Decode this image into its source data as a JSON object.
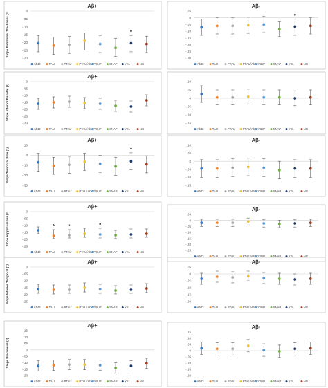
{
  "colors": {
    "Ab42": "#3b78c2",
    "TAU": "#e8822e",
    "PTAU": "#a5a5a5",
    "PTAU/Ab42": "#f2c12e",
    "VILIP": "#5b9bd5",
    "SNAP": "#70ad47",
    "YKL": "#1f3864",
    "NG": "#9e3a1f"
  },
  "chart_data": [
    {
      "type": "scatter",
      "title": "Aβ+",
      "ylabel": "Slope Entorhinal Thickness (z)",
      "ylim": [
        -0.3,
        0
      ],
      "yticks": [
        0,
        -0.05,
        -0.1,
        -0.15,
        -0.2,
        -0.25,
        -0.3
      ],
      "categories": [
        "Ab42",
        "TAU",
        "PTAU",
        "PTAU/Ab42",
        "VILIP",
        "SNAP",
        "YKL",
        "NG"
      ],
      "values": [
        -0.205,
        -0.22,
        -0.215,
        -0.19,
        -0.21,
        -0.235,
        -0.205,
        -0.21
      ],
      "lower": [
        -0.26,
        -0.275,
        -0.27,
        -0.25,
        -0.265,
        -0.29,
        -0.26,
        -0.265
      ],
      "upper": [
        -0.155,
        -0.165,
        -0.16,
        -0.14,
        -0.155,
        -0.175,
        -0.155,
        -0.16
      ],
      "markers": [
        "",
        "",
        "",
        "",
        "",
        "",
        "*",
        ""
      ]
    },
    {
      "type": "scatter",
      "title": "Aβ-",
      "ylabel": "",
      "ylim": [
        -0.3,
        0.05
      ],
      "yticks": [
        0.05,
        0,
        -0.05,
        -0.1,
        -0.15,
        -0.2,
        -0.25,
        -0.3
      ],
      "categories": [
        "Ab42",
        "TAU",
        "PTAU",
        "PTAU/Ab42",
        "VILIP",
        "SNAP",
        "YKL",
        "NG"
      ],
      "values": [
        -0.07,
        -0.06,
        -0.06,
        -0.055,
        -0.05,
        -0.085,
        -0.065,
        -0.06
      ],
      "lower": [
        -0.13,
        -0.12,
        -0.12,
        -0.115,
        -0.11,
        -0.14,
        -0.13,
        -0.12
      ],
      "upper": [
        -0.01,
        0.0,
        0.0,
        0.005,
        0.01,
        -0.03,
        -0.01,
        0.0
      ],
      "markers": [
        "",
        "",
        "",
        "",
        "",
        "",
        "*",
        ""
      ]
    },
    {
      "type": "scatter",
      "title": "Aβ+",
      "ylabel": "Slope Inferior Parietal (z)",
      "ylim": [
        -0.3,
        0
      ],
      "yticks": [
        0,
        -0.05,
        -0.1,
        -0.15,
        -0.2,
        -0.25,
        -0.3
      ],
      "categories": [
        "Ab42",
        "TAU",
        "PTAU",
        "PTAU/Ab42",
        "VILIP",
        "SNAP",
        "YKL",
        "NG"
      ],
      "values": [
        -0.16,
        -0.15,
        -0.145,
        -0.155,
        -0.16,
        -0.175,
        -0.18,
        -0.135
      ],
      "lower": [
        -0.2,
        -0.19,
        -0.185,
        -0.195,
        -0.2,
        -0.215,
        -0.22,
        -0.175
      ],
      "upper": [
        -0.12,
        -0.11,
        -0.105,
        -0.115,
        -0.12,
        -0.135,
        -0.14,
        -0.095
      ],
      "markers": [
        "",
        "",
        "",
        "",
        "",
        "",
        "",
        ""
      ]
    },
    {
      "type": "scatter",
      "title": "",
      "ylabel": "",
      "ylim": [
        -0.15,
        0.1
      ],
      "yticks": [
        0.1,
        0.05,
        0,
        -0.05,
        -0.1,
        -0.15
      ],
      "categories": [
        "Ab42",
        "TAU",
        "PTAU",
        "PTAU/Ab42",
        "VILIP",
        "SNAP",
        "YKL",
        "NG"
      ],
      "values": [
        0.025,
        0.005,
        0.005,
        0.01,
        0.005,
        0.005,
        0.0,
        0.005
      ],
      "lower": [
        -0.025,
        -0.04,
        -0.04,
        -0.035,
        -0.04,
        -0.04,
        -0.045,
        -0.04
      ],
      "upper": [
        0.075,
        0.05,
        0.05,
        0.055,
        0.05,
        0.05,
        0.045,
        0.05
      ],
      "markers": [
        "",
        "",
        "",
        "",
        "",
        "",
        "",
        ""
      ]
    },
    {
      "type": "scatter",
      "title": "Aβ+",
      "ylabel": "Slope Temporal Pole (z)",
      "ylim": [
        -0.3,
        0.1
      ],
      "yticks": [
        0.1,
        0,
        -0.1,
        -0.2,
        -0.3
      ],
      "categories": [
        "Ab42",
        "TAU",
        "PTAU",
        "PTAU/Ab42",
        "VILIP",
        "SNAP",
        "YKL",
        "NG"
      ],
      "values": [
        -0.07,
        -0.105,
        -0.095,
        -0.065,
        -0.085,
        -0.11,
        -0.06,
        -0.09
      ],
      "lower": [
        -0.16,
        -0.19,
        -0.18,
        -0.15,
        -0.17,
        -0.2,
        -0.145,
        -0.175
      ],
      "upper": [
        0.02,
        -0.02,
        -0.01,
        0.02,
        0.0,
        -0.02,
        0.025,
        -0.005
      ],
      "markers": [
        "",
        "",
        "",
        "",
        "",
        "",
        "*",
        ""
      ]
    },
    {
      "type": "scatter",
      "title": "Aβ-",
      "ylabel": "",
      "ylim": [
        -0.15,
        0.1
      ],
      "yticks": [
        0.1,
        0.05,
        0,
        -0.05,
        -0.1,
        -0.15
      ],
      "categories": [
        "Ab42",
        "TAU",
        "PTAU",
        "PTAU/Ab42",
        "VILIP",
        "SNAP",
        "YKL",
        "NG"
      ],
      "values": [
        -0.045,
        -0.045,
        -0.04,
        -0.035,
        -0.04,
        -0.055,
        -0.045,
        -0.045
      ],
      "lower": [
        -0.1,
        -0.1,
        -0.095,
        -0.09,
        -0.095,
        -0.11,
        -0.1,
        -0.1
      ],
      "upper": [
        0.01,
        0.01,
        0.015,
        0.02,
        0.015,
        0.0,
        0.01,
        0.01
      ],
      "markers": [
        "",
        "",
        "",
        "",
        "",
        "",
        "",
        ""
      ]
    },
    {
      "type": "scatter",
      "title": "Aβ+",
      "ylabel": "Slope Hippocampus (z)",
      "ylim": [
        -0.25,
        0
      ],
      "yticks": [
        0,
        -0.05,
        -0.1,
        -0.15,
        -0.2,
        -0.25
      ],
      "categories": [
        "Ab42",
        "TAU",
        "PTAU",
        "PTAU/Ab42",
        "VILIP",
        "SNAP",
        "YKL",
        "NG"
      ],
      "values": [
        -0.135,
        -0.175,
        -0.17,
        -0.16,
        -0.165,
        -0.17,
        -0.165,
        -0.16
      ],
      "lower": [
        -0.16,
        -0.195,
        -0.19,
        -0.185,
        -0.19,
        -0.195,
        -0.19,
        -0.185
      ],
      "upper": [
        -0.11,
        -0.13,
        -0.13,
        -0.12,
        -0.12,
        -0.135,
        -0.125,
        -0.125
      ],
      "markers": [
        "",
        "*",
        "*",
        "",
        "*",
        "",
        "",
        ""
      ]
    },
    {
      "type": "scatter",
      "title": "Aβ-",
      "ylabel": "",
      "ylim": [
        -0.25,
        0.05
      ],
      "yticks": [
        0.05,
        0,
        -0.05,
        -0.1,
        -0.15,
        -0.2,
        -0.25
      ],
      "categories": [
        "Ab42",
        "TAU",
        "PTAU",
        "PTAU/Ab42",
        "VILIP",
        "SNAP",
        "YKL",
        "NG"
      ],
      "values": [
        -0.02,
        -0.02,
        -0.02,
        -0.01,
        -0.025,
        -0.03,
        -0.025,
        -0.02
      ],
      "lower": [
        -0.05,
        -0.05,
        -0.05,
        -0.04,
        -0.055,
        -0.06,
        -0.055,
        -0.05
      ],
      "upper": [
        0.01,
        0.01,
        0.01,
        0.02,
        0.005,
        0.0,
        0.005,
        0.01
      ],
      "markers": [
        "",
        "",
        "",
        "",
        "",
        "",
        "",
        ""
      ]
    },
    {
      "type": "scatter",
      "title": "Aβ+",
      "ylabel": "Slope Inferior Temporal (z)",
      "ylim": [
        -0.25,
        0
      ],
      "yticks": [
        0,
        -0.05,
        -0.1,
        -0.15,
        -0.2,
        -0.25
      ],
      "categories": [
        "Ab42",
        "TAU",
        "PTAU",
        "PTAU/Ab42",
        "VILIP",
        "SNAP",
        "YKL",
        "NG"
      ],
      "values": [
        -0.16,
        -0.165,
        -0.165,
        -0.15,
        -0.16,
        -0.17,
        -0.165,
        -0.155
      ],
      "lower": [
        -0.19,
        -0.195,
        -0.19,
        -0.18,
        -0.19,
        -0.195,
        -0.19,
        -0.185
      ],
      "upper": [
        -0.125,
        -0.13,
        -0.13,
        -0.115,
        -0.125,
        -0.135,
        -0.13,
        -0.12
      ],
      "markers": [
        "",
        "",
        "",
        "",
        "",
        "",
        "",
        ""
      ]
    },
    {
      "type": "scatter",
      "title": "Aβ-",
      "ylabel": "",
      "ylim": [
        -0.2,
        0.05
      ],
      "yticks": [
        0.05,
        0,
        -0.05,
        -0.1,
        -0.15,
        -0.2
      ],
      "categories": [
        "Ab42",
        "TAU",
        "PTAU",
        "PTAU/Ab42",
        "VILIP",
        "SNAP",
        "YKL",
        "NG"
      ],
      "values": [
        -0.035,
        -0.02,
        -0.025,
        -0.015,
        -0.03,
        -0.035,
        -0.04,
        -0.035
      ],
      "lower": [
        -0.075,
        -0.06,
        -0.065,
        -0.05,
        -0.07,
        -0.075,
        -0.08,
        -0.075
      ],
      "upper": [
        0.005,
        0.02,
        0.015,
        0.02,
        0.01,
        0.005,
        0.0,
        0.005
      ],
      "markers": [
        "",
        "",
        "",
        "",
        "",
        "",
        "",
        ""
      ]
    },
    {
      "type": "scatter",
      "title": "Aβ+",
      "ylabel": "Slope Precuneus (z)",
      "ylim": [
        -0.2,
        0.15
      ],
      "yticks": [
        0.15,
        0.1,
        0.05,
        0,
        -0.05,
        -0.1,
        -0.15,
        -0.2
      ],
      "categories": [
        "Ab42",
        "TAU",
        "PTAU",
        "PTAU/Ab42",
        "VILIP",
        "SNAP",
        "YKL",
        "NG"
      ],
      "values": [
        -0.125,
        -0.12,
        -0.115,
        -0.115,
        -0.12,
        -0.14,
        -0.125,
        -0.105
      ],
      "lower": [
        -0.165,
        -0.16,
        -0.155,
        -0.155,
        -0.16,
        -0.18,
        -0.165,
        -0.145
      ],
      "upper": [
        -0.085,
        -0.08,
        -0.075,
        -0.075,
        -0.08,
        -0.1,
        -0.085,
        -0.065
      ],
      "markers": [
        "",
        "",
        "",
        "",
        "",
        "",
        "",
        ""
      ]
    },
    {
      "type": "scatter",
      "title": "Aβ-",
      "ylabel": "",
      "ylim": [
        -0.2,
        0.15
      ],
      "yticks": [
        0.15,
        0.1,
        0.05,
        0,
        -0.05,
        -0.1,
        -0.15,
        -0.2
      ],
      "categories": [
        "Ab42",
        "TAU",
        "PTAU",
        "PTAU/Ab42",
        "VILIP",
        "SNAP",
        "YKL",
        "NG"
      ],
      "values": [
        0.02,
        0.015,
        0.015,
        0.04,
        0.005,
        -0.005,
        0.015,
        0.02
      ],
      "lower": [
        -0.03,
        -0.035,
        -0.035,
        -0.01,
        -0.045,
        -0.055,
        -0.035,
        -0.03
      ],
      "upper": [
        0.07,
        0.065,
        0.065,
        0.09,
        0.055,
        0.045,
        0.065,
        0.07
      ],
      "markers": [
        "",
        "",
        "",
        "",
        "",
        "",
        "",
        ""
      ]
    }
  ]
}
